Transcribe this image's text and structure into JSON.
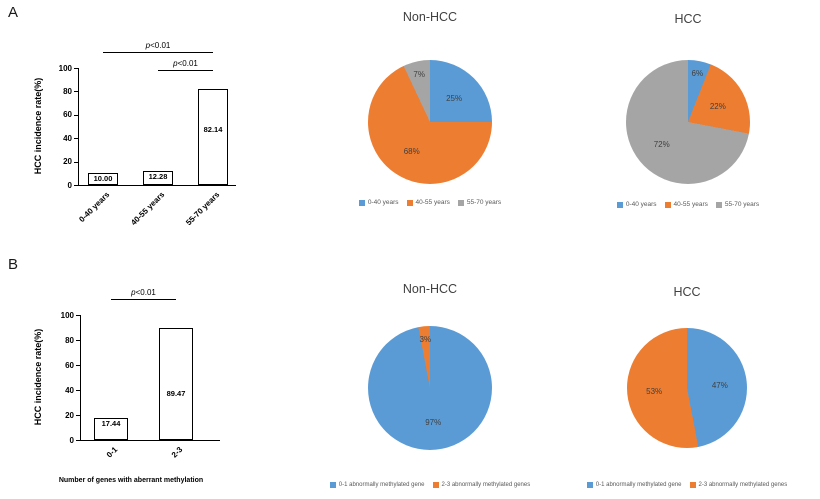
{
  "figure": {
    "panel_a_label": "A",
    "panel_b_label": "B"
  },
  "colors": {
    "blue": "#5B9BD5",
    "orange": "#ED7D31",
    "gray": "#A5A5A5",
    "bar_fill": "#FFFFFF",
    "bar_border": "#000000"
  },
  "chart_data": [
    {
      "id": "bar_a",
      "type": "bar",
      "panel": "A",
      "title": "",
      "xlabel": "",
      "ylabel": "HCC incidence rate(%)",
      "ylim": [
        0,
        100
      ],
      "yticks": [
        0,
        20,
        40,
        60,
        80,
        100
      ],
      "categories": [
        "0-40 years",
        "40-55 years",
        "55-70 years"
      ],
      "values": [
        10.0,
        12.28,
        82.14
      ],
      "value_labels": [
        "10.00",
        "12.28",
        "82.14"
      ],
      "significance": [
        {
          "label": "p<0.01",
          "from": 0,
          "to": 2,
          "level": 1
        },
        {
          "label": "p<0.01",
          "from": 1,
          "to": 2,
          "level": 0
        }
      ]
    },
    {
      "id": "pie_nonhcc_a",
      "type": "pie",
      "panel": "A",
      "title": "Non-HCC",
      "legend_position": "bottom",
      "slices": [
        {
          "label": "0-40 years",
          "value": 25,
          "pct_label": "25%",
          "color": "#5B9BD5"
        },
        {
          "label": "40-55 years",
          "value": 68,
          "pct_label": "68%",
          "color": "#ED7D31"
        },
        {
          "label": "55-70 years",
          "value": 7,
          "pct_label": "7%",
          "color": "#A5A5A5"
        }
      ]
    },
    {
      "id": "pie_hcc_a",
      "type": "pie",
      "panel": "A",
      "title": "HCC",
      "legend_position": "bottom",
      "slices": [
        {
          "label": "0-40 years",
          "value": 6,
          "pct_label": "6%",
          "color": "#5B9BD5"
        },
        {
          "label": "40-55 years",
          "value": 22,
          "pct_label": "22%",
          "color": "#ED7D31"
        },
        {
          "label": "55-70 years",
          "value": 72,
          "pct_label": "72%",
          "color": "#A5A5A5"
        }
      ]
    },
    {
      "id": "bar_b",
      "type": "bar",
      "panel": "B",
      "title": "",
      "xlabel": "Number of genes with aberrant methylation",
      "ylabel": "HCC incidence rate(%)",
      "ylim": [
        0,
        100
      ],
      "yticks": [
        0,
        20,
        40,
        60,
        80,
        100
      ],
      "categories": [
        "0-1",
        "2-3"
      ],
      "values": [
        17.44,
        89.47
      ],
      "value_labels": [
        "17.44",
        "89.47"
      ],
      "significance": [
        {
          "label": "p<0.01",
          "from": 0,
          "to": 1,
          "level": 0
        }
      ]
    },
    {
      "id": "pie_nonhcc_b",
      "type": "pie",
      "panel": "B",
      "title": "Non-HCC",
      "legend_position": "bottom",
      "slices": [
        {
          "label": "0-1 abnormally methylated gene",
          "value": 97,
          "pct_label": "97%",
          "color": "#5B9BD5"
        },
        {
          "label": "2-3 abnormally methylated genes",
          "value": 3,
          "pct_label": "3%",
          "color": "#ED7D31"
        }
      ]
    },
    {
      "id": "pie_hcc_b",
      "type": "pie",
      "panel": "B",
      "title": "HCC",
      "legend_position": "bottom",
      "slices": [
        {
          "label": "0-1 abnormally methylated gene",
          "value": 47,
          "pct_label": "47%",
          "color": "#5B9BD5"
        },
        {
          "label": "2-3 abnormally methylated genes",
          "value": 53,
          "pct_label": "53%",
          "color": "#ED7D31"
        }
      ]
    }
  ]
}
